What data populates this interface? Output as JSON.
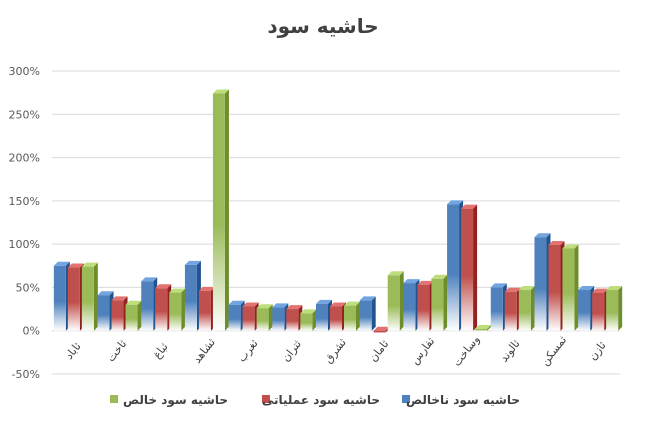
{
  "chart_data": {
    "type": "bar",
    "title": "حاشیه سود",
    "categories": [
      "ثاباد",
      "ثاخت",
      "ثباغ",
      "ثشاهد",
      "ثغرب",
      "ثتران",
      "ثشرق",
      "ثامان",
      "ثفارس",
      "وساخت",
      "ثالوند",
      "ثمسکن",
      "ثازن"
    ],
    "series": [
      {
        "name": "حاشیه سود ناخالص",
        "color": "#4F81BD",
        "values": [
          75,
          41,
          57,
          76,
          30,
          27,
          31,
          35,
          55,
          146,
          50,
          108,
          47
        ]
      },
      {
        "name": "حاشیه سود عملیاتی",
        "color": "#C0504D",
        "values": [
          73,
          35,
          49,
          46,
          28,
          25,
          28,
          -2,
          53,
          141,
          45,
          99,
          44
        ]
      },
      {
        "name": "حاشیه سود خالص",
        "color": "#9BBB59",
        "values": [
          74,
          30,
          44,
          274,
          26,
          20,
          29,
          64,
          60,
          2,
          47,
          95,
          47
        ]
      }
    ],
    "ylim": [
      -50,
      300
    ],
    "yticks": [
      "300%",
      "250%",
      "200%",
      "150%",
      "100%",
      "50%",
      "0%",
      "-50%"
    ],
    "grid": true,
    "legend_position": "bottom"
  }
}
